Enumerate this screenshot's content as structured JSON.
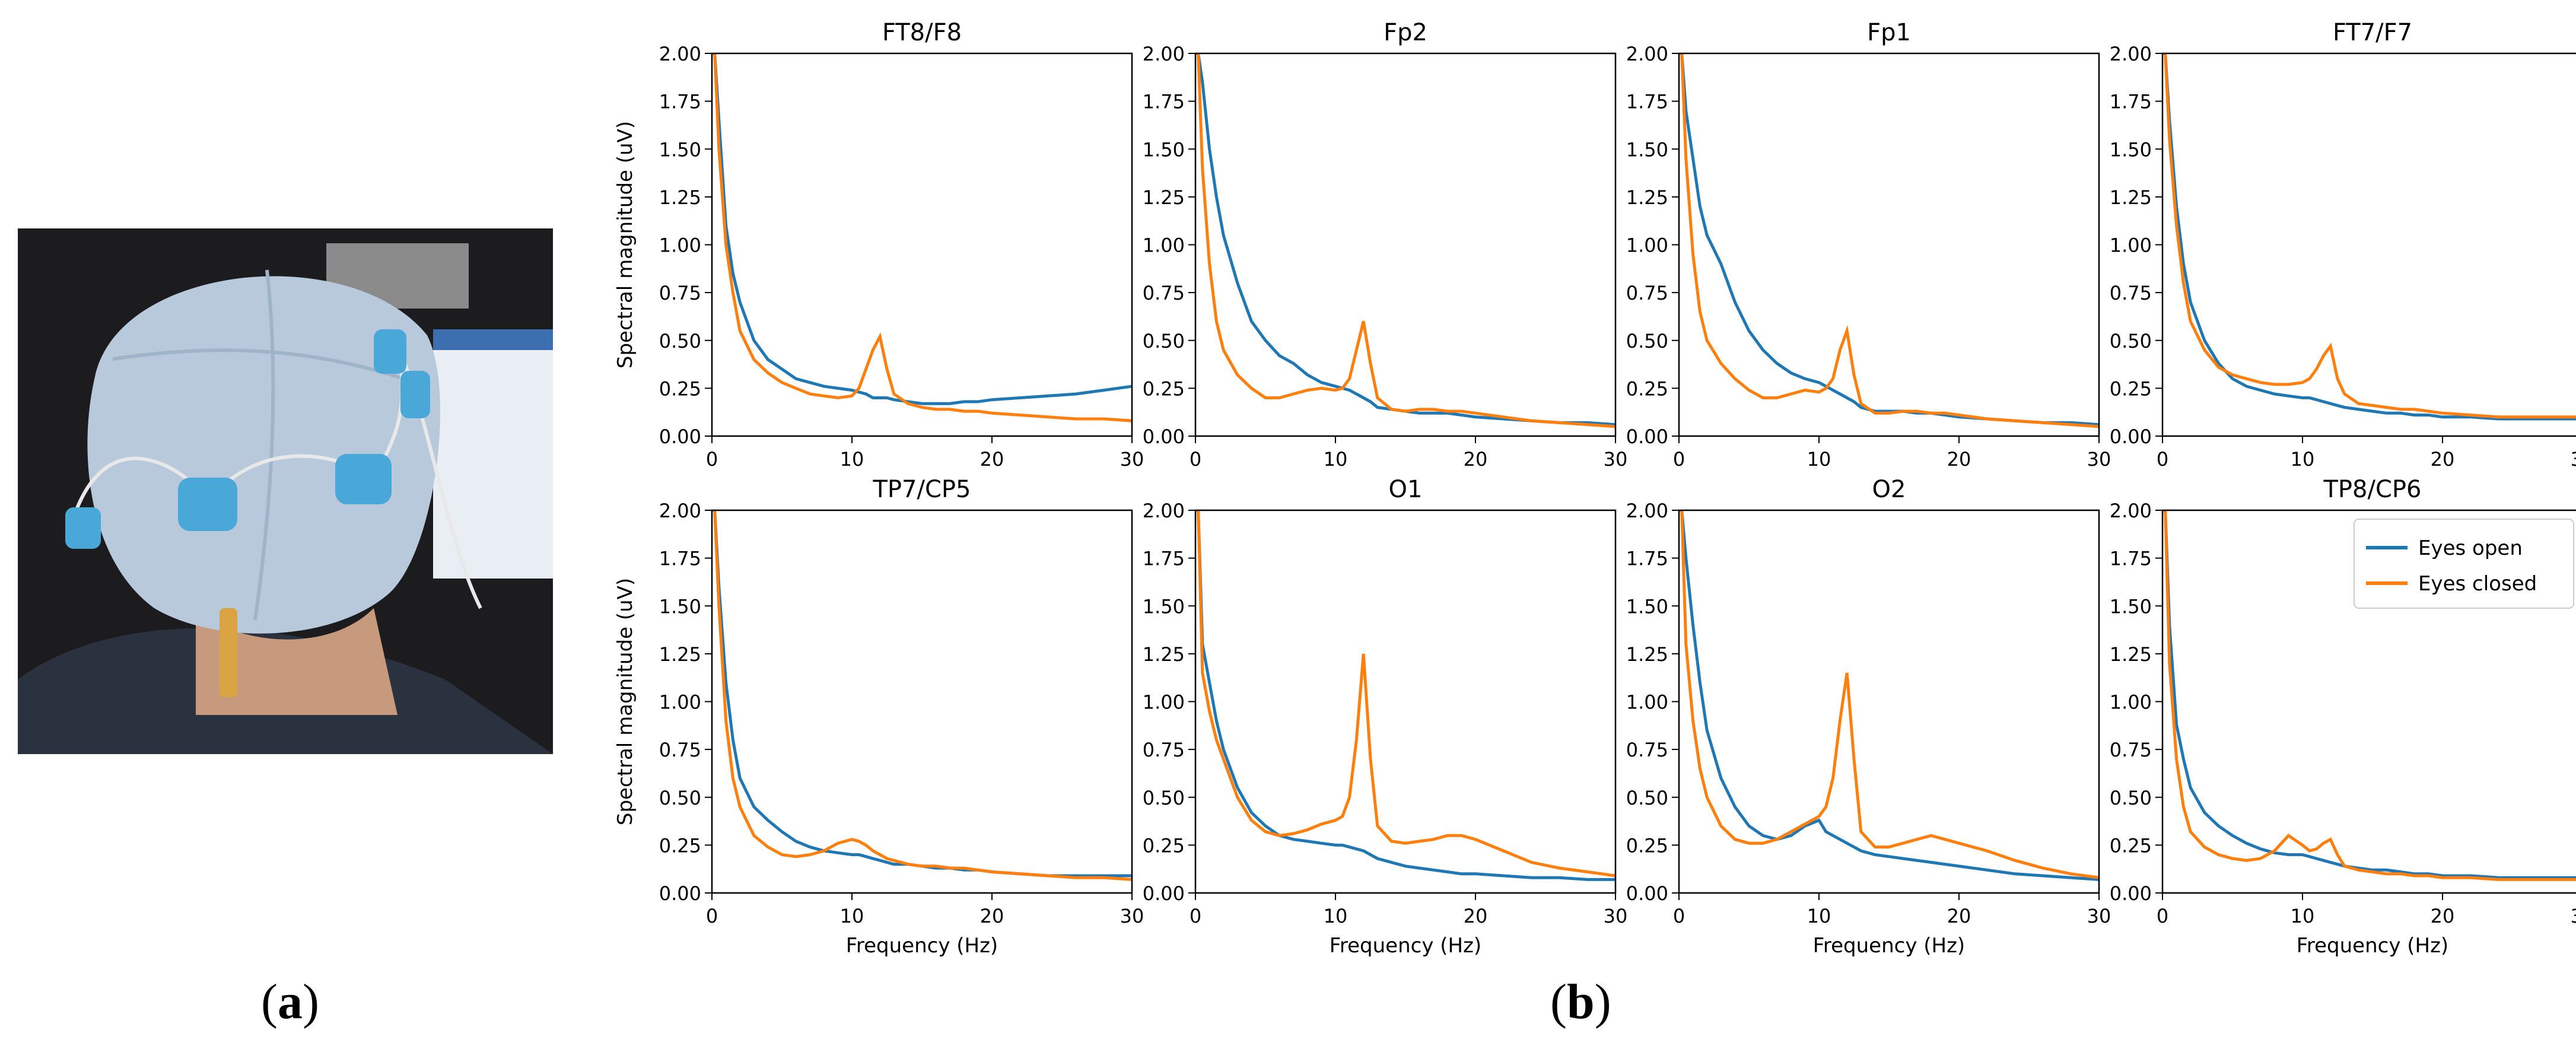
{
  "panel_labels": {
    "a": "a",
    "b": "b"
  },
  "colors": {
    "eyes_open": "#1f77b4",
    "eyes_closed": "#ff7f0e",
    "axis": "#000000"
  },
  "chart_data": {
    "type": "line",
    "layout": "2x4 small multiples",
    "xlabel": "Frequency (Hz)",
    "ylabel": "Spectral magnitude (uV)",
    "xlim": [
      0,
      30
    ],
    "ylim": [
      0,
      2.0
    ],
    "xticks": [
      0,
      10,
      20,
      30
    ],
    "yticks": [
      0.0,
      0.25,
      0.5,
      0.75,
      1.0,
      1.25,
      1.5,
      1.75,
      2.0
    ],
    "ytick_labels": [
      "0.00",
      "0.25",
      "0.50",
      "0.75",
      "1.00",
      "1.25",
      "1.50",
      "1.75",
      "2.00"
    ],
    "legend": {
      "location": "upper right of TP8/CP6 panel",
      "entries": [
        "Eyes open",
        "Eyes closed"
      ]
    },
    "x_sample_hz": [
      0,
      0.2,
      0.5,
      1,
      1.5,
      2,
      3,
      4,
      5,
      6,
      7,
      8,
      9,
      10,
      10.5,
      11,
      11.5,
      12,
      12.5,
      13,
      14,
      15,
      16,
      17,
      18,
      19,
      20,
      22,
      24,
      26,
      28,
      30
    ],
    "panels": [
      {
        "title": "FT8/F8",
        "series": [
          {
            "name": "Eyes open",
            "values": [
              2.0,
              2.0,
              1.65,
              1.1,
              0.85,
              0.7,
              0.5,
              0.4,
              0.35,
              0.3,
              0.28,
              0.26,
              0.25,
              0.24,
              0.23,
              0.22,
              0.2,
              0.2,
              0.2,
              0.19,
              0.18,
              0.17,
              0.17,
              0.17,
              0.18,
              0.18,
              0.19,
              0.2,
              0.21,
              0.22,
              0.24,
              0.26
            ]
          },
          {
            "name": "Eyes closed",
            "values": [
              2.0,
              2.0,
              1.5,
              1.0,
              0.75,
              0.55,
              0.4,
              0.33,
              0.28,
              0.25,
              0.22,
              0.21,
              0.2,
              0.21,
              0.25,
              0.35,
              0.45,
              0.52,
              0.35,
              0.22,
              0.17,
              0.15,
              0.14,
              0.14,
              0.13,
              0.13,
              0.12,
              0.11,
              0.1,
              0.09,
              0.09,
              0.08
            ]
          }
        ]
      },
      {
        "title": "Fp2",
        "series": [
          {
            "name": "Eyes open",
            "values": [
              2.0,
              2.0,
              1.85,
              1.5,
              1.25,
              1.05,
              0.8,
              0.6,
              0.5,
              0.42,
              0.38,
              0.32,
              0.28,
              0.26,
              0.25,
              0.24,
              0.22,
              0.2,
              0.18,
              0.15,
              0.14,
              0.13,
              0.12,
              0.12,
              0.12,
              0.11,
              0.1,
              0.09,
              0.08,
              0.07,
              0.07,
              0.06
            ]
          },
          {
            "name": "Eyes closed",
            "values": [
              2.0,
              2.0,
              1.4,
              0.9,
              0.6,
              0.45,
              0.32,
              0.25,
              0.2,
              0.2,
              0.22,
              0.24,
              0.25,
              0.24,
              0.25,
              0.3,
              0.45,
              0.6,
              0.38,
              0.2,
              0.14,
              0.13,
              0.14,
              0.14,
              0.13,
              0.13,
              0.12,
              0.1,
              0.08,
              0.07,
              0.06,
              0.05
            ]
          }
        ]
      },
      {
        "title": "Fp1",
        "series": [
          {
            "name": "Eyes open",
            "values": [
              2.0,
              2.0,
              1.7,
              1.45,
              1.2,
              1.05,
              0.9,
              0.7,
              0.55,
              0.45,
              0.38,
              0.33,
              0.3,
              0.28,
              0.26,
              0.24,
              0.22,
              0.2,
              0.18,
              0.15,
              0.13,
              0.13,
              0.13,
              0.12,
              0.12,
              0.11,
              0.1,
              0.09,
              0.08,
              0.07,
              0.07,
              0.06
            ]
          },
          {
            "name": "Eyes closed",
            "values": [
              2.0,
              2.0,
              1.45,
              0.95,
              0.65,
              0.5,
              0.38,
              0.3,
              0.24,
              0.2,
              0.2,
              0.22,
              0.24,
              0.23,
              0.25,
              0.3,
              0.45,
              0.55,
              0.32,
              0.17,
              0.12,
              0.12,
              0.13,
              0.13,
              0.12,
              0.12,
              0.11,
              0.09,
              0.08,
              0.07,
              0.06,
              0.05
            ]
          }
        ]
      },
      {
        "title": "FT7/F7",
        "series": [
          {
            "name": "Eyes open",
            "values": [
              2.0,
              2.0,
              1.65,
              1.2,
              0.9,
              0.7,
              0.5,
              0.38,
              0.3,
              0.26,
              0.24,
              0.22,
              0.21,
              0.2,
              0.2,
              0.19,
              0.18,
              0.17,
              0.16,
              0.15,
              0.14,
              0.13,
              0.12,
              0.12,
              0.11,
              0.11,
              0.1,
              0.1,
              0.09,
              0.09,
              0.09,
              0.09
            ]
          },
          {
            "name": "Eyes closed",
            "values": [
              2.0,
              2.0,
              1.55,
              1.1,
              0.8,
              0.6,
              0.45,
              0.36,
              0.32,
              0.3,
              0.28,
              0.27,
              0.27,
              0.28,
              0.3,
              0.35,
              0.42,
              0.47,
              0.3,
              0.22,
              0.17,
              0.16,
              0.15,
              0.14,
              0.14,
              0.13,
              0.12,
              0.11,
              0.1,
              0.1,
              0.1,
              0.1
            ]
          }
        ]
      },
      {
        "title": "TP7/CP5",
        "series": [
          {
            "name": "Eyes open",
            "values": [
              2.0,
              2.0,
              1.6,
              1.1,
              0.8,
              0.6,
              0.45,
              0.38,
              0.32,
              0.27,
              0.24,
              0.22,
              0.21,
              0.2,
              0.2,
              0.19,
              0.18,
              0.17,
              0.16,
              0.15,
              0.15,
              0.14,
              0.13,
              0.13,
              0.12,
              0.12,
              0.11,
              0.1,
              0.09,
              0.09,
              0.09,
              0.09
            ]
          },
          {
            "name": "Eyes closed",
            "values": [
              2.0,
              2.0,
              1.5,
              0.9,
              0.6,
              0.45,
              0.3,
              0.24,
              0.2,
              0.19,
              0.2,
              0.22,
              0.26,
              0.28,
              0.27,
              0.25,
              0.22,
              0.2,
              0.18,
              0.17,
              0.15,
              0.14,
              0.14,
              0.13,
              0.13,
              0.12,
              0.11,
              0.1,
              0.09,
              0.08,
              0.08,
              0.07
            ]
          }
        ]
      },
      {
        "title": "O1",
        "series": [
          {
            "name": "Eyes open",
            "values": [
              2.0,
              2.0,
              1.3,
              1.1,
              0.9,
              0.75,
              0.55,
              0.42,
              0.35,
              0.3,
              0.28,
              0.27,
              0.26,
              0.25,
              0.25,
              0.24,
              0.23,
              0.22,
              0.2,
              0.18,
              0.16,
              0.14,
              0.13,
              0.12,
              0.11,
              0.1,
              0.1,
              0.09,
              0.08,
              0.08,
              0.07,
              0.07
            ]
          },
          {
            "name": "Eyes closed",
            "values": [
              2.0,
              2.0,
              1.15,
              0.95,
              0.8,
              0.7,
              0.5,
              0.38,
              0.32,
              0.3,
              0.31,
              0.33,
              0.36,
              0.38,
              0.4,
              0.5,
              0.8,
              1.25,
              0.7,
              0.35,
              0.27,
              0.26,
              0.27,
              0.28,
              0.3,
              0.3,
              0.28,
              0.22,
              0.16,
              0.13,
              0.11,
              0.09
            ]
          }
        ]
      },
      {
        "title": "O2",
        "series": [
          {
            "name": "Eyes open",
            "values": [
              2.0,
              2.0,
              1.75,
              1.4,
              1.1,
              0.85,
              0.6,
              0.45,
              0.35,
              0.3,
              0.28,
              0.3,
              0.35,
              0.38,
              0.32,
              0.3,
              0.28,
              0.26,
              0.24,
              0.22,
              0.2,
              0.19,
              0.18,
              0.17,
              0.16,
              0.15,
              0.14,
              0.12,
              0.1,
              0.09,
              0.08,
              0.07
            ]
          },
          {
            "name": "Eyes closed",
            "values": [
              2.0,
              2.0,
              1.3,
              0.9,
              0.65,
              0.5,
              0.35,
              0.28,
              0.26,
              0.26,
              0.28,
              0.32,
              0.36,
              0.4,
              0.45,
              0.6,
              0.9,
              1.15,
              0.7,
              0.32,
              0.24,
              0.24,
              0.26,
              0.28,
              0.3,
              0.28,
              0.26,
              0.22,
              0.17,
              0.13,
              0.1,
              0.08
            ]
          }
        ]
      },
      {
        "title": "TP8/CP6",
        "series": [
          {
            "name": "Eyes open",
            "values": [
              2.0,
              2.0,
              1.4,
              0.88,
              0.7,
              0.55,
              0.42,
              0.35,
              0.3,
              0.26,
              0.23,
              0.21,
              0.2,
              0.2,
              0.19,
              0.18,
              0.17,
              0.16,
              0.15,
              0.14,
              0.13,
              0.12,
              0.12,
              0.11,
              0.1,
              0.1,
              0.09,
              0.09,
              0.08,
              0.08,
              0.08,
              0.08
            ]
          },
          {
            "name": "Eyes closed",
            "values": [
              2.0,
              2.0,
              1.2,
              0.7,
              0.45,
              0.32,
              0.24,
              0.2,
              0.18,
              0.17,
              0.18,
              0.22,
              0.3,
              0.25,
              0.22,
              0.23,
              0.26,
              0.28,
              0.2,
              0.14,
              0.12,
              0.11,
              0.1,
              0.1,
              0.09,
              0.09,
              0.08,
              0.08,
              0.07,
              0.07,
              0.07,
              0.07
            ]
          }
        ]
      }
    ]
  }
}
